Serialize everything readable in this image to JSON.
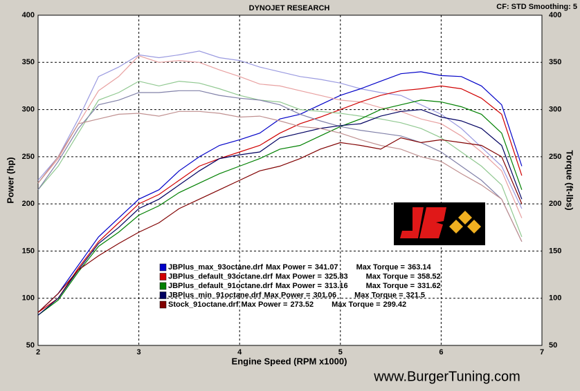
{
  "chart_data": {
    "type": "line",
    "title": "DYNOJET RESEARCH",
    "settings_text": "CF: STD  Smoothing: 5",
    "xlabel": "Engine Speed (RPM x1000)",
    "ylabel": "Power (hp)",
    "y2label": "Torque (ft-lbs)",
    "watermark": "www.BurgerTuning.com",
    "max_power_label": "Max Power =",
    "max_torque_label": "Max Torque =",
    "xlim": [
      2,
      7
    ],
    "xticks": [
      2,
      3,
      4,
      5,
      6,
      7
    ],
    "ylim": [
      50,
      400
    ],
    "yticks": [
      50,
      100,
      150,
      200,
      250,
      300,
      350,
      400
    ],
    "y2lim": [
      50,
      400
    ],
    "y2ticks": [
      50,
      100,
      150,
      200,
      250,
      300,
      350,
      400
    ],
    "grid": true,
    "x": [
      2.0,
      2.2,
      2.4,
      2.6,
      2.8,
      3.0,
      3.2,
      3.4,
      3.6,
      3.8,
      4.0,
      4.2,
      4.4,
      4.6,
      4.8,
      5.0,
      5.2,
      5.4,
      5.6,
      5.8,
      6.0,
      6.2,
      6.4,
      6.6,
      6.8
    ],
    "series": [
      {
        "name": "JBPlus_max_93octane.drf",
        "color": "#0000c8",
        "torque_color": "#9a9ae0",
        "max_power": 341.07,
        "max_torque": 363.14,
        "power": [
          85,
          105,
          135,
          165,
          185,
          205,
          215,
          235,
          250,
          262,
          268,
          275,
          290,
          295,
          305,
          315,
          322,
          330,
          338,
          340,
          336,
          335,
          325,
          305,
          240
        ],
        "torque": [
          225,
          250,
          290,
          335,
          345,
          358,
          355,
          358,
          362,
          355,
          352,
          345,
          340,
          335,
          332,
          328,
          322,
          318,
          315,
          305,
          295,
          280,
          260,
          240,
          195
        ]
      },
      {
        "name": "JBPlus_default_93octane.drf",
        "color": "#d00000",
        "torque_color": "#e8a0a0",
        "max_power": 325.83,
        "max_torque": 358.52,
        "power": [
          85,
          100,
          132,
          160,
          180,
          200,
          210,
          225,
          240,
          248,
          255,
          262,
          275,
          285,
          292,
          300,
          308,
          315,
          320,
          322,
          325,
          322,
          312,
          295,
          230
        ],
        "torque": [
          222,
          248,
          285,
          320,
          335,
          357,
          350,
          352,
          350,
          342,
          335,
          327,
          325,
          320,
          315,
          310,
          308,
          302,
          298,
          290,
          285,
          272,
          255,
          235,
          185
        ]
      },
      {
        "name": "JBPlus_default_91octane.drf",
        "color": "#008000",
        "torque_color": "#90c890",
        "max_power": 313.16,
        "max_torque": 331.62,
        "power": [
          82,
          98,
          128,
          155,
          170,
          188,
          198,
          212,
          222,
          232,
          240,
          248,
          258,
          262,
          272,
          282,
          290,
          300,
          305,
          310,
          308,
          303,
          295,
          275,
          215
        ],
        "torque": [
          215,
          240,
          275,
          310,
          318,
          330,
          325,
          330,
          328,
          322,
          315,
          310,
          308,
          300,
          298,
          296,
          293,
          290,
          286,
          280,
          270,
          255,
          240,
          220,
          165
        ]
      },
      {
        "name": "JBPlus_min_91octane.drf",
        "color": "#000060",
        "torque_color": "#8080a8",
        "max_power": 301.06,
        "max_torque": 321.5,
        "power": [
          82,
          100,
          130,
          158,
          175,
          195,
          205,
          220,
          235,
          248,
          252,
          255,
          270,
          275,
          280,
          283,
          285,
          293,
          298,
          300,
          292,
          288,
          280,
          262,
          205
        ],
        "torque": [
          215,
          245,
          280,
          305,
          310,
          318,
          318,
          320,
          320,
          315,
          312,
          310,
          305,
          295,
          288,
          282,
          278,
          275,
          272,
          265,
          255,
          240,
          225,
          205,
          160
        ]
      },
      {
        "name": "Stock_91octane.drf",
        "color": "#800000",
        "torque_color": "#c09090",
        "max_power": 273.52,
        "max_torque": 299.42,
        "power": [
          85,
          105,
          130,
          145,
          158,
          170,
          180,
          195,
          205,
          215,
          225,
          235,
          240,
          248,
          258,
          265,
          262,
          258,
          270,
          265,
          268,
          265,
          262,
          250,
          200
        ],
        "torque": [
          222,
          250,
          285,
          290,
          295,
          296,
          293,
          298,
          298,
          296,
          292,
          293,
          288,
          282,
          280,
          275,
          268,
          262,
          258,
          250,
          245,
          232,
          220,
          205,
          160
        ]
      }
    ]
  }
}
